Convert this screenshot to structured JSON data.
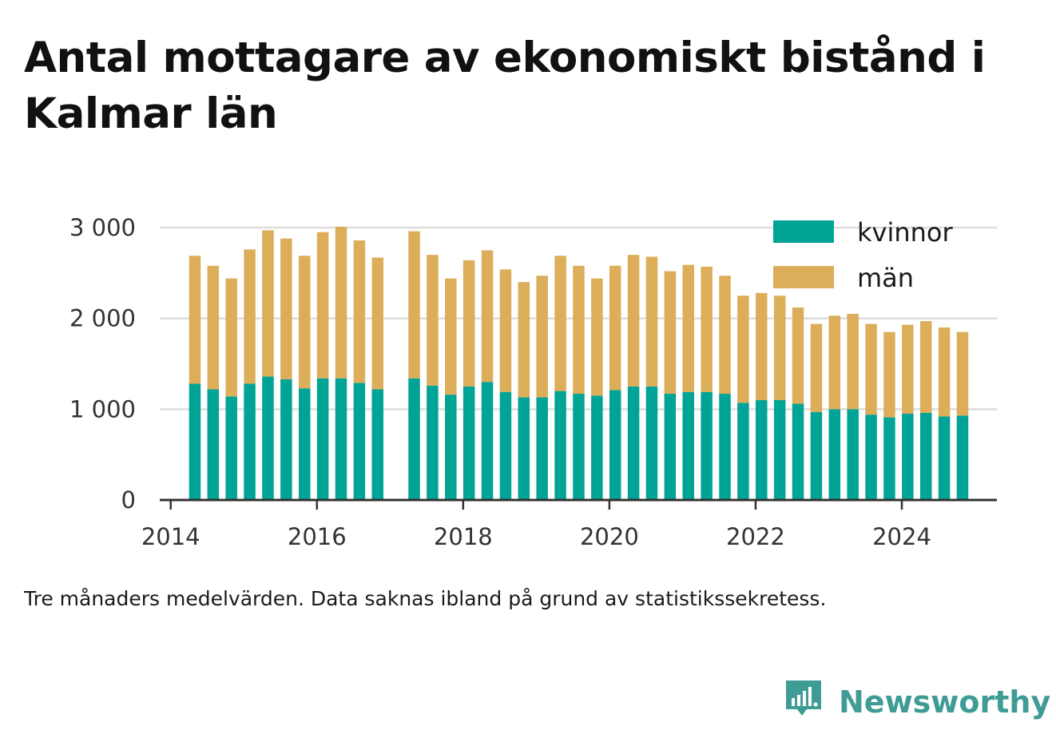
{
  "title": "Antal mottagare av ekonomiskt bistånd i Kalmar län",
  "caption": "Tre månaders medelvärden. Data saknas ibland på grund av statistikssekretess.",
  "brand": {
    "name": "Newsworthy",
    "icon": "newsworthy-logo-icon",
    "color": "#3f9c95"
  },
  "colors": {
    "kvinnor": "#00a396",
    "man": "#dcae5a",
    "grid": "#dddddd",
    "axis": "#333333"
  },
  "chart_data": {
    "type": "bar",
    "stacked": true,
    "title": "Antal mottagare av ekonomiskt bistånd i Kalmar län",
    "xlabel": "",
    "ylabel": "",
    "ylim": [
      0,
      3000
    ],
    "xlim": [
      2013.85,
      2025.3
    ],
    "grid": true,
    "legend_position": "top-right",
    "y_ticks": [
      {
        "value": 0,
        "label": "0"
      },
      {
        "value": 1000,
        "label": "1 000"
      },
      {
        "value": 2000,
        "label": "2 000"
      },
      {
        "value": 3000,
        "label": "3 000"
      }
    ],
    "x_ticks": [
      {
        "value": 2014,
        "label": "2014"
      },
      {
        "value": 2016,
        "label": "2016"
      },
      {
        "value": 2018,
        "label": "2018"
      },
      {
        "value": 2020,
        "label": "2020"
      },
      {
        "value": 2022,
        "label": "2022"
      },
      {
        "value": 2024,
        "label": "2024"
      }
    ],
    "x": [
      2014.33,
      2014.58,
      2014.83,
      2015.08,
      2015.33,
      2015.58,
      2015.83,
      2016.08,
      2016.33,
      2016.58,
      2016.83,
      2017.33,
      2017.58,
      2017.83,
      2018.08,
      2018.33,
      2018.58,
      2018.83,
      2019.08,
      2019.33,
      2019.58,
      2019.83,
      2020.08,
      2020.33,
      2020.58,
      2020.83,
      2021.08,
      2021.33,
      2021.58,
      2021.83,
      2022.08,
      2022.33,
      2022.58,
      2022.83,
      2023.08,
      2023.33,
      2023.58,
      2023.83,
      2024.08,
      2024.33,
      2024.58,
      2024.83
    ],
    "series": [
      {
        "name": "kvinnor",
        "color": "#00a396",
        "values": [
          1280,
          1220,
          1140,
          1280,
          1360,
          1330,
          1230,
          1340,
          1340,
          1290,
          1220,
          1340,
          1260,
          1160,
          1250,
          1300,
          1190,
          1130,
          1130,
          1200,
          1170,
          1150,
          1210,
          1250,
          1250,
          1170,
          1190,
          1190,
          1170,
          1070,
          1100,
          1100,
          1060,
          970,
          1000,
          1000,
          940,
          910,
          950,
          960,
          920,
          930
        ]
      },
      {
        "name": "män",
        "color": "#dcae5a",
        "values": [
          1410,
          1360,
          1300,
          1480,
          1610,
          1550,
          1460,
          1610,
          1670,
          1570,
          1450,
          1620,
          1440,
          1280,
          1390,
          1450,
          1350,
          1270,
          1340,
          1490,
          1410,
          1290,
          1370,
          1450,
          1430,
          1350,
          1400,
          1380,
          1300,
          1180,
          1180,
          1150,
          1060,
          970,
          1030,
          1050,
          1000,
          940,
          980,
          1010,
          980,
          920
        ]
      }
    ]
  }
}
